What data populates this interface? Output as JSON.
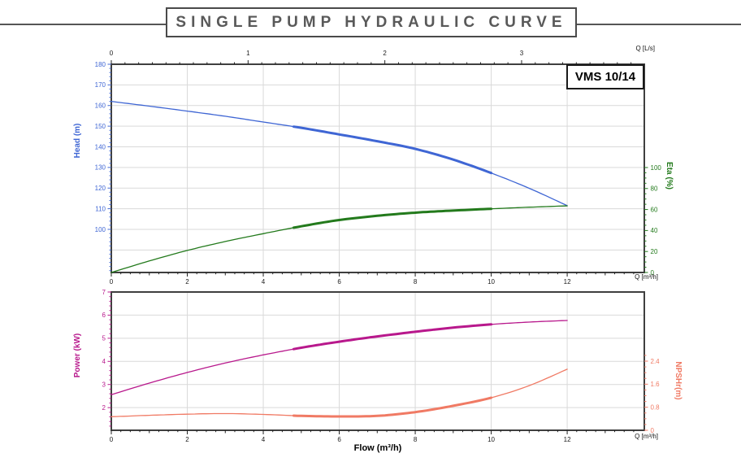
{
  "title": "SINGLE PUMP HYDRAULIC CURVE",
  "model_label": "VMS 10/14",
  "units": {
    "flow_lps": "Q [L/s]",
    "flow_m3h": "Q [m³/h]"
  },
  "flow_axis_title": "Flow (m³/h)",
  "colors": {
    "head": "#3f66d4",
    "eta": "#237a1c",
    "power": "#b8188c",
    "npsh": "#f07a64",
    "frame": "#3f3f3f",
    "grid": "#d9d9d9",
    "x_tick_text": "#1a1a1a",
    "title_text": "#595959"
  },
  "chart_data": [
    {
      "id": "head_eta",
      "type": "line",
      "title": "",
      "x_axis": {
        "label": "Q [m³/h]",
        "min": 0,
        "max": 14.03,
        "major_ticks": [
          0,
          2,
          4,
          6,
          8,
          10,
          12
        ],
        "mid_step": 1,
        "minor_step": 0.25
      },
      "x_axis_secondary": {
        "label": "Q [L/s]",
        "m3h_per_unit": 3.6,
        "major_ticks": [
          0,
          1,
          2,
          3
        ],
        "minor_step": 0.1,
        "minor_max": 3.85
      },
      "left_axis": {
        "title": "Head (m)",
        "min": 79.1,
        "max": 180,
        "major_ticks": [
          180,
          170,
          160,
          150,
          140,
          130,
          120,
          110,
          100
        ],
        "grid": [
          170,
          160,
          150,
          140,
          130,
          120,
          110,
          100,
          90
        ],
        "minor_step": 2
      },
      "right_axis": {
        "title": "Eta (%)",
        "min": 0,
        "max": 198.4,
        "major_ticks": [
          100,
          80,
          60,
          40,
          20,
          0
        ],
        "minor_step": 5,
        "minor_max": 100
      },
      "q": [
        0,
        1,
        2,
        3,
        4,
        5,
        6,
        7,
        8,
        9,
        10,
        11,
        12
      ],
      "series": [
        {
          "name": "head",
          "axis": "left",
          "color": "#3f66d4",
          "bold_range": [
            4.8,
            10
          ],
          "values": [
            162,
            159.7,
            157.3,
            154.8,
            152,
            149.2,
            146,
            142.7,
            139,
            133.8,
            127.3,
            119.9,
            111.5
          ]
        },
        {
          "name": "eta",
          "axis": "right",
          "color": "#237a1c",
          "bold_range": [
            4.8,
            10
          ],
          "values": [
            0,
            11,
            21,
            29.5,
            37,
            44,
            50,
            54,
            57,
            59,
            60.7,
            62.2,
            63.5
          ]
        }
      ]
    },
    {
      "id": "power_npsh",
      "type": "line",
      "title": "",
      "x_axis": {
        "label": "Q [m³/h]",
        "min": 0,
        "max": 14.03,
        "major_ticks": [
          0,
          2,
          4,
          6,
          8,
          10,
          12
        ],
        "mid_step": 1,
        "minor_step": 0.25
      },
      "left_axis": {
        "title": "Power (kW)",
        "min": 1.02,
        "max": 7,
        "major_ticks": [
          7,
          6,
          5,
          4,
          3,
          2
        ],
        "grid": [
          6,
          5,
          4,
          3,
          2
        ],
        "minor_step": 0.2
      },
      "right_axis": {
        "title": "NPSHr(m)",
        "min": 0,
        "max": 4.8,
        "major_ticks": [
          2.4,
          1.6,
          0.8,
          0
        ],
        "minor_step": 0.2,
        "minor_max": 2.6
      },
      "q": [
        0,
        1,
        2,
        3,
        4,
        5,
        6,
        7,
        8,
        9,
        10,
        11,
        12
      ],
      "series": [
        {
          "name": "power",
          "axis": "left",
          "color": "#b8188c",
          "bold_range": [
            4.8,
            10
          ],
          "values": [
            2.56,
            3.06,
            3.52,
            3.93,
            4.28,
            4.59,
            4.85,
            5.08,
            5.28,
            5.46,
            5.6,
            5.7,
            5.77
          ]
        },
        {
          "name": "npsh",
          "axis": "right",
          "color": "#f07a64",
          "bold_range": [
            4.8,
            10
          ],
          "values": [
            0.47,
            0.52,
            0.56,
            0.58,
            0.55,
            0.5,
            0.48,
            0.5,
            0.63,
            0.85,
            1.13,
            1.55,
            2.12
          ]
        }
      ]
    }
  ]
}
